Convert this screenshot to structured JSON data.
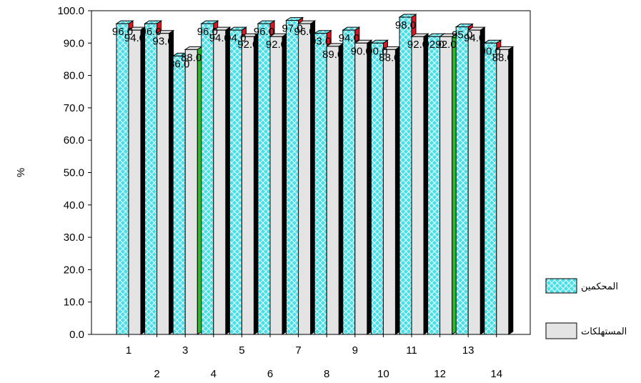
{
  "chart_data": {
    "type": "bar",
    "ylabel": "%",
    "ylim": [
      0,
      100
    ],
    "categories": [
      "1",
      "2",
      "3",
      "4",
      "5",
      "6",
      "7",
      "8",
      "9",
      "10",
      "11",
      "12",
      "13",
      "14"
    ],
    "yticks": [
      "0.0",
      "10.0",
      "20.0",
      "30.0",
      "40.0",
      "50.0",
      "60.0",
      "70.0",
      "80.0",
      "90.0",
      "100.0"
    ],
    "series": [
      {
        "name": "المحكمين",
        "values": [
          96,
          96,
          86,
          96,
          94,
          96,
          97,
          93,
          94,
          90,
          98,
          92,
          95,
          90
        ]
      },
      {
        "name": "المستهلكات",
        "values": [
          94,
          93,
          88,
          94,
          92,
          92,
          96,
          89,
          90,
          88,
          92,
          92,
          94,
          88
        ]
      }
    ],
    "data_labels": [
      [
        "96.0",
        "96.0",
        "86.0",
        "96.0",
        "94.0",
        "96.0",
        "97.0",
        "93.0",
        "94.0",
        "90.0",
        "98.0",
        "92.0",
        "95.0",
        "90.0"
      ],
      [
        "94.0",
        "93.0",
        "88.0",
        "94.0",
        "92.0",
        "92.0",
        "96.0",
        "89.0",
        "90.0",
        "88.0",
        "92.0",
        "92.0",
        "94.0",
        "88.0"
      ]
    ],
    "legend_position": "bottom-right",
    "grid": false,
    "colors": {
      "series1_fill": "#3ee4ea",
      "series1_hatch": "#ffffff",
      "series2_fill": "#e4e4e4",
      "side_red": "#e8111d",
      "side_green": "#22c11e",
      "side_black": "#000000"
    }
  }
}
